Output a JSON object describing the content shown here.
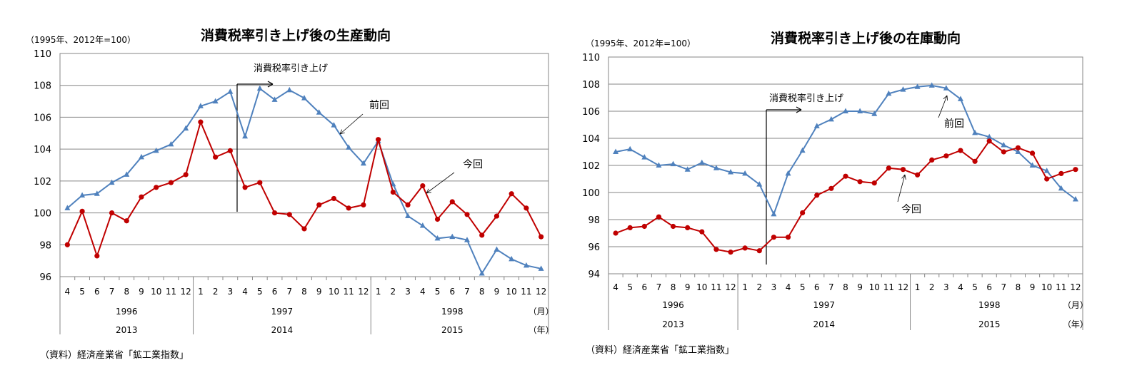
{
  "charts": [
    {
      "chart_data": {
        "type": "line",
        "title": "消費税率引き上げ後の生産動向",
        "unit_note": "（1995年、2012年=100）",
        "ylim": [
          96,
          110
        ],
        "yticks": [
          "96",
          "98",
          "100",
          "102",
          "104",
          "106",
          "108",
          "110"
        ],
        "grid": true,
        "categories": [
          "4",
          "5",
          "6",
          "7",
          "8",
          "9",
          "10",
          "11",
          "12",
          "1",
          "2",
          "3",
          "4",
          "5",
          "6",
          "7",
          "8",
          "9",
          "10",
          "11",
          "12",
          "1",
          "2",
          "3",
          "4",
          "5",
          "6",
          "7",
          "8",
          "9",
          "10",
          "11",
          "12"
        ],
        "year_groups_top": [
          "1996",
          "1997",
          "1998"
        ],
        "year_groups_bottom": [
          "2013",
          "2014",
          "2015"
        ],
        "month_unit": "（月）",
        "year_unit": "（年）",
        "series": [
          {
            "name": "前回",
            "color": "#4F81BD",
            "marker": "triangle",
            "values": [
              100.3,
              101.1,
              101.2,
              101.9,
              102.4,
              103.5,
              103.9,
              104.3,
              105.3,
              106.7,
              107.0,
              107.6,
              104.8,
              107.8,
              107.1,
              107.7,
              107.2,
              106.3,
              105.5,
              104.1,
              103.1,
              104.5,
              101.8,
              99.8,
              99.2,
              98.4,
              98.5,
              98.3,
              96.2,
              97.7,
              97.1,
              96.7,
              96.5
            ]
          },
          {
            "name": "今回",
            "color": "#C00000",
            "marker": "circle",
            "values": [
              98.0,
              100.1,
              97.3,
              100.0,
              99.5,
              101.0,
              101.6,
              101.9,
              102.4,
              105.7,
              103.5,
              103.9,
              101.6,
              101.9,
              100.0,
              99.9,
              99.0,
              100.5,
              100.9,
              100.3,
              100.5,
              104.6,
              101.3,
              100.5,
              101.7,
              99.6,
              100.7,
              99.9,
              98.6,
              99.8,
              101.2,
              100.3,
              98.5
            ]
          }
        ],
        "annotations": {
          "event": "消費税率引き上げ",
          "prev_label": "前回",
          "curr_label": "今回"
        }
      },
      "source": "（資料）経済産業省「鉱工業指数」"
    },
    {
      "chart_data": {
        "type": "line",
        "title": "消費税率引き上げ後の在庫動向",
        "unit_note": "（1995年、2012年=100）",
        "ylim": [
          94,
          110
        ],
        "yticks": [
          "94",
          "96",
          "98",
          "100",
          "102",
          "104",
          "106",
          "108",
          "110"
        ],
        "grid": true,
        "categories": [
          "4",
          "5",
          "6",
          "7",
          "8",
          "9",
          "10",
          "11",
          "12",
          "1",
          "2",
          "3",
          "4",
          "5",
          "6",
          "7",
          "8",
          "9",
          "10",
          "11",
          "12",
          "1",
          "2",
          "3",
          "4",
          "5",
          "6",
          "7",
          "8",
          "9",
          "10",
          "11",
          "12"
        ],
        "year_groups_top": [
          "1996",
          "1997",
          "1998"
        ],
        "year_groups_bottom": [
          "2013",
          "2014",
          "2015"
        ],
        "month_unit": "（月）",
        "year_unit": "（年）",
        "series": [
          {
            "name": "前回",
            "color": "#4F81BD",
            "marker": "triangle",
            "values": [
              103.0,
              103.2,
              102.6,
              102.0,
              102.1,
              101.7,
              102.2,
              101.8,
              101.5,
              101.4,
              100.6,
              98.4,
              101.4,
              103.1,
              104.9,
              105.4,
              106.0,
              106.0,
              105.8,
              107.3,
              107.6,
              107.8,
              107.9,
              107.7,
              106.9,
              104.4,
              104.1,
              103.5,
              103.0,
              102.0,
              101.6,
              100.3,
              99.5
            ]
          },
          {
            "name": "今回",
            "color": "#C00000",
            "marker": "circle",
            "values": [
              97.0,
              97.4,
              97.5,
              98.2,
              97.5,
              97.4,
              97.1,
              95.8,
              95.6,
              95.9,
              95.7,
              96.7,
              96.7,
              98.5,
              99.8,
              100.3,
              101.2,
              100.8,
              100.7,
              101.8,
              101.7,
              101.3,
              102.4,
              102.7,
              103.1,
              102.3,
              103.8,
              103.0,
              103.3,
              102.9,
              101.0,
              101.4,
              101.7
            ]
          }
        ],
        "annotations": {
          "event": "消費税率引き上げ",
          "prev_label": "前回",
          "curr_label": "今回"
        }
      },
      "source": "（資料）経済産業省「鉱工業指数」"
    }
  ]
}
